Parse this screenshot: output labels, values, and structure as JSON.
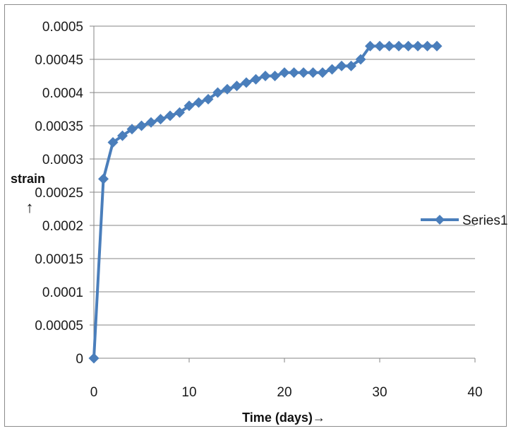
{
  "chart_data": {
    "type": "line",
    "title": "",
    "xlabel": "Time (days)→",
    "ylabel": "strain",
    "ylabel_arrow": "↑",
    "xlim": [
      0,
      40
    ],
    "ylim": [
      0,
      0.0005
    ],
    "x_ticks": [
      0,
      10,
      20,
      30,
      40
    ],
    "y_ticks": [
      0,
      5e-05,
      0.0001,
      0.00015,
      0.0002,
      0.00025,
      0.0003,
      0.00035,
      0.0004,
      0.00045,
      0.0005
    ],
    "x_tick_labels": [
      "0",
      "10",
      "20",
      "30",
      "40"
    ],
    "y_tick_labels": [
      "0",
      "0.00005",
      "0.0001",
      "0.00015",
      "0.0002",
      "0.00025",
      "0.0003",
      "0.00035",
      "0.0004",
      "0.00045",
      "0.0005"
    ],
    "grid": "horizontal",
    "legend_position": "right",
    "colors": {
      "series": "#4a7ebb",
      "grid": "#868686",
      "axis": "#868686"
    },
    "series": [
      {
        "name": "Series1",
        "marker": "diamond",
        "x": [
          0,
          1,
          2,
          3,
          4,
          5,
          6,
          7,
          8,
          9,
          10,
          11,
          12,
          13,
          14,
          15,
          16,
          17,
          18,
          19,
          20,
          21,
          22,
          23,
          24,
          25,
          26,
          27,
          28,
          29,
          30,
          31,
          32,
          33,
          34,
          35,
          36
        ],
        "values": [
          0,
          0.00027,
          0.000325,
          0.000335,
          0.000345,
          0.00035,
          0.000355,
          0.00036,
          0.000365,
          0.00037,
          0.00038,
          0.000385,
          0.00039,
          0.0004,
          0.000405,
          0.00041,
          0.000415,
          0.00042,
          0.000425,
          0.000425,
          0.00043,
          0.00043,
          0.00043,
          0.00043,
          0.00043,
          0.000435,
          0.00044,
          0.00044,
          0.00045,
          0.00047,
          0.00047,
          0.00047,
          0.00047,
          0.00047,
          0.00047,
          0.00047,
          0.00047
        ]
      }
    ]
  }
}
